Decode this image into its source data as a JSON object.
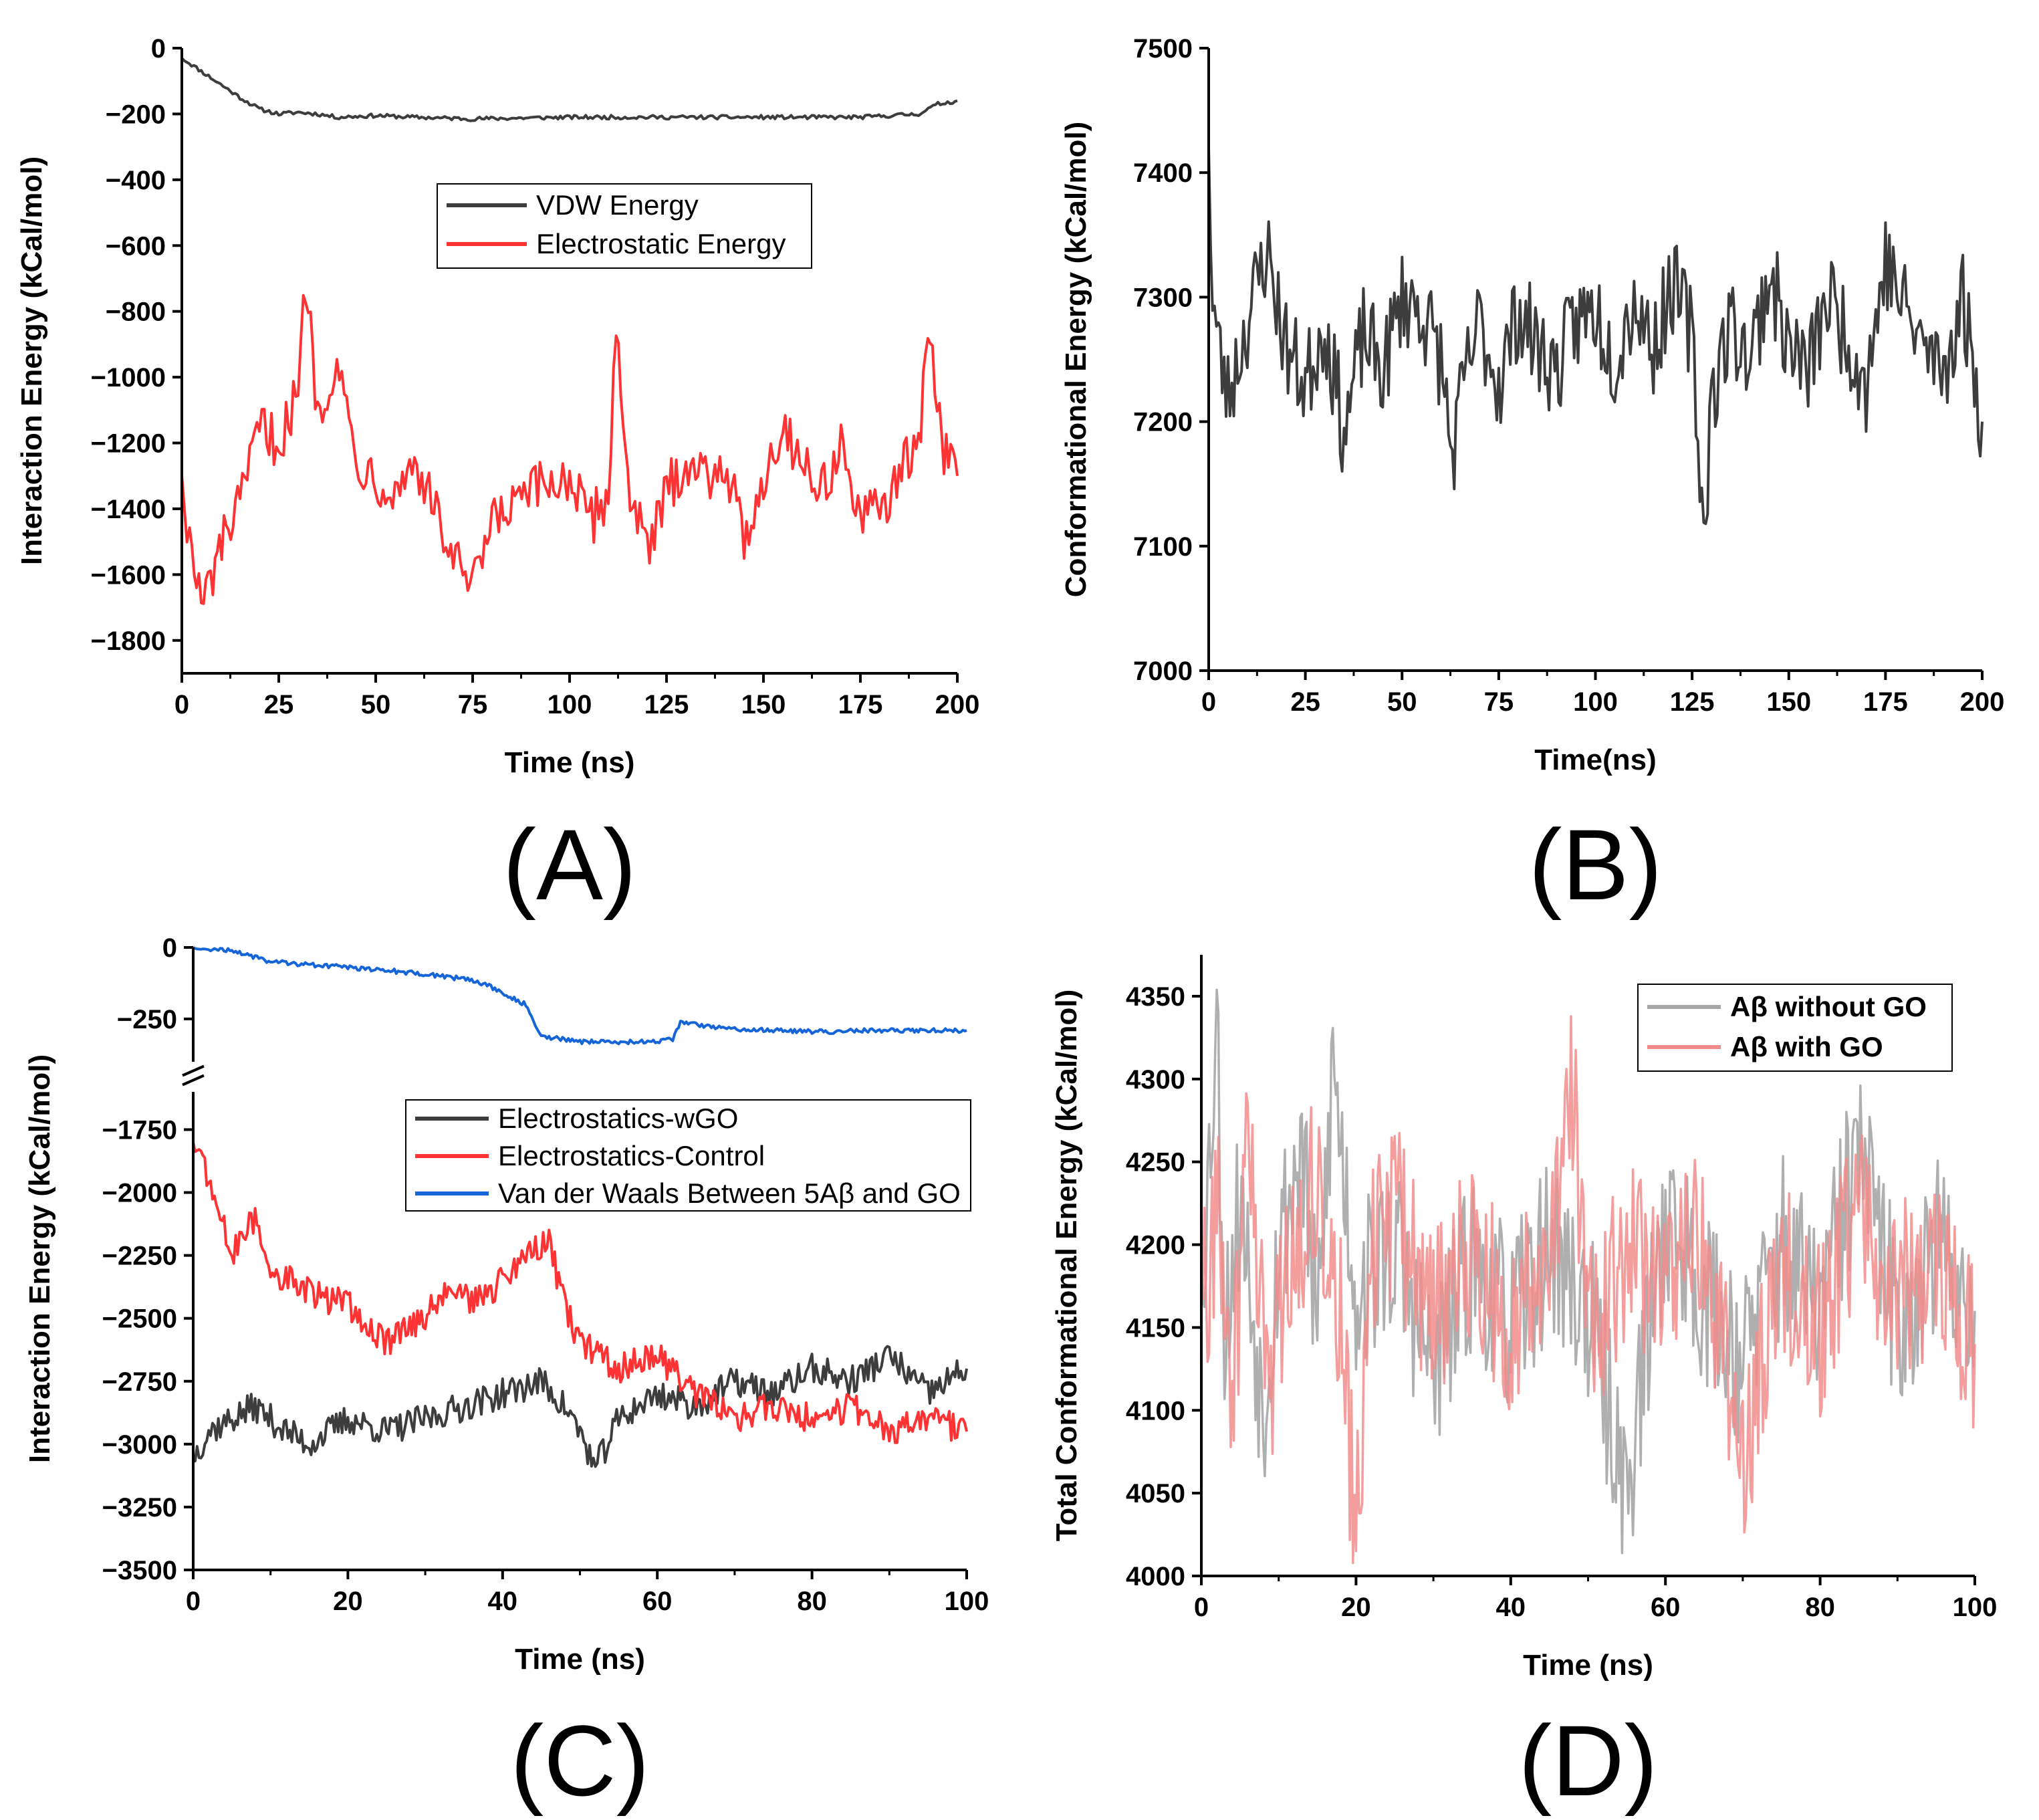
{
  "chart_data": [
    {
      "id": "A",
      "type": "line",
      "panel_label": "(A)",
      "xlabel": "Time (ns)",
      "ylabel": "Interaction Energy (kCal/mol)",
      "xlim": [
        0,
        200
      ],
      "ylim": [
        -1900,
        0
      ],
      "xticks": [
        0,
        25,
        50,
        75,
        100,
        125,
        150,
        175,
        200
      ],
      "yticks": [
        0,
        -200,
        -400,
        -600,
        -800,
        -1000,
        -1200,
        -1400,
        -1600,
        -1800
      ],
      "legend_position": "upper-center",
      "series": [
        {
          "name": "VDW Energy",
          "color": "#3d3d3d",
          "x": [
            0,
            5,
            10,
            15,
            20,
            25,
            30,
            35,
            40,
            50,
            60,
            75,
            100,
            125,
            150,
            175,
            190,
            195,
            200
          ],
          "values": [
            -30,
            -70,
            -110,
            -150,
            -185,
            -200,
            -195,
            -200,
            -210,
            -205,
            -210,
            -215,
            -210,
            -210,
            -210,
            -210,
            -200,
            -170,
            -160
          ]
        },
        {
          "name": "Electrostatic Energy",
          "color": "#ff3333",
          "x": [
            0,
            2,
            5,
            8,
            12,
            15,
            20,
            25,
            30,
            32,
            35,
            40,
            45,
            50,
            55,
            60,
            65,
            70,
            75,
            80,
            90,
            100,
            105,
            110,
            112,
            115,
            120,
            125,
            130,
            135,
            140,
            145,
            150,
            155,
            160,
            165,
            170,
            175,
            180,
            185,
            190,
            193,
            196,
            200
          ],
          "values": [
            -1300,
            -1500,
            -1700,
            -1600,
            -1450,
            -1400,
            -1150,
            -1200,
            -1050,
            -700,
            -1100,
            -950,
            -1250,
            -1300,
            -1350,
            -1250,
            -1400,
            -1550,
            -1650,
            -1450,
            -1350,
            -1300,
            -1450,
            -1350,
            -850,
            -1300,
            -1550,
            -1350,
            -1250,
            -1300,
            -1250,
            -1500,
            -1300,
            -1150,
            -1250,
            -1350,
            -1200,
            -1450,
            -1400,
            -1300,
            -1200,
            -850,
            -1200,
            -1300
          ]
        }
      ]
    },
    {
      "id": "B",
      "type": "line",
      "panel_label": "(B)",
      "xlabel": "Time(ns)",
      "ylabel": "Conformational Energy (kCal/mol)",
      "xlim": [
        0,
        200
      ],
      "ylim": [
        7000,
        7500
      ],
      "xticks": [
        0,
        25,
        50,
        75,
        100,
        125,
        150,
        175,
        200
      ],
      "yticks": [
        7000,
        7100,
        7200,
        7300,
        7400,
        7500
      ],
      "series": [
        {
          "name": "Conformational Energy",
          "color": "#3d3d3d",
          "x": [
            0,
            1,
            3,
            5,
            10,
            15,
            20,
            25,
            30,
            35,
            40,
            45,
            50,
            55,
            60,
            63,
            66,
            70,
            75,
            80,
            85,
            90,
            95,
            100,
            105,
            110,
            115,
            120,
            125,
            128,
            130,
            135,
            140,
            145,
            150,
            155,
            160,
            165,
            170,
            175,
            180,
            185,
            190,
            195,
            200
          ],
          "values": [
            7420,
            7300,
            7250,
            7220,
            7280,
            7340,
            7260,
            7230,
            7280,
            7190,
            7270,
            7240,
            7300,
            7290,
            7250,
            7170,
            7230,
            7280,
            7230,
            7290,
            7260,
            7240,
            7280,
            7290,
            7250,
            7300,
            7260,
            7310,
            7270,
            7110,
            7220,
            7280,
            7250,
            7320,
            7260,
            7240,
            7300,
            7270,
            7230,
            7330,
            7290,
            7260,
            7240,
            7300,
            7200
          ]
        }
      ]
    },
    {
      "id": "C",
      "type": "line",
      "panel_label": "(C)",
      "xlabel": "Time (ns)",
      "ylabel": "Interaction Energy (kCal/mol)",
      "xlim": [
        0,
        100
      ],
      "axis_break": "between -400 and -1600",
      "ylim_upper": [
        -400,
        0
      ],
      "ylim_lower": [
        -3500,
        -1600
      ],
      "xticks": [
        0,
        20,
        40,
        60,
        80,
        100
      ],
      "yticks_upper": [
        0,
        -250
      ],
      "yticks_lower": [
        -1750,
        -2000,
        -2250,
        -2500,
        -2750,
        -3000,
        -3250,
        -3500
      ],
      "legend_position": "upper-right",
      "series": [
        {
          "name": "Electrostatics-wGO",
          "color": "#3d3d3d",
          "x": [
            0,
            2,
            5,
            8,
            12,
            15,
            20,
            25,
            30,
            35,
            40,
            45,
            48,
            50,
            52,
            55,
            60,
            65,
            70,
            75,
            80,
            85,
            90,
            95,
            100
          ],
          "values": [
            -3050,
            -2950,
            -2900,
            -2850,
            -2950,
            -3000,
            -2900,
            -2950,
            -2900,
            -2850,
            -2800,
            -2750,
            -2850,
            -2950,
            -3100,
            -2900,
            -2800,
            -2850,
            -2750,
            -2800,
            -2700,
            -2750,
            -2650,
            -2800,
            -2700
          ]
        },
        {
          "name": "Electrostatics-Control",
          "color": "#ff3333",
          "x": [
            0,
            1,
            3,
            5,
            8,
            10,
            15,
            20,
            25,
            30,
            33,
            36,
            40,
            43,
            46,
            48,
            50,
            55,
            60,
            65,
            70,
            75,
            80,
            85,
            90,
            95,
            100
          ],
          "values": [
            -1800,
            -1850,
            -2050,
            -2250,
            -2100,
            -2300,
            -2400,
            -2450,
            -2600,
            -2500,
            -2350,
            -2450,
            -2350,
            -2250,
            -2200,
            -2450,
            -2600,
            -2700,
            -2650,
            -2800,
            -2900,
            -2850,
            -2900,
            -2850,
            -2950,
            -2900,
            -2950
          ]
        },
        {
          "name": "Van der Waals Between 5Aβ and GO",
          "color": "#1565d8",
          "x": [
            0,
            5,
            10,
            20,
            25,
            30,
            35,
            38,
            40,
            43,
            45,
            50,
            55,
            60,
            62,
            63,
            65,
            70,
            75,
            80,
            90,
            100
          ],
          "values": [
            0,
            -10,
            -50,
            -70,
            -80,
            -95,
            -110,
            -130,
            -160,
            -200,
            -310,
            -330,
            -330,
            -330,
            -320,
            -260,
            -270,
            -285,
            -290,
            -295,
            -290,
            -290
          ]
        }
      ]
    },
    {
      "id": "D",
      "type": "line",
      "panel_label": "(D)",
      "xlabel": "Time (ns)",
      "ylabel": "Total Conformational Energy (kCal/mol)",
      "xlim": [
        0,
        100
      ],
      "ylim": [
        4000,
        4375
      ],
      "xticks": [
        0,
        20,
        40,
        60,
        80,
        100
      ],
      "yticks": [
        4000,
        4050,
        4100,
        4150,
        4200,
        4250,
        4300,
        4350
      ],
      "legend_position": "upper-right",
      "series": [
        {
          "name": "Aβ without GO",
          "color": "#a6a6a6",
          "x": [
            0,
            1,
            2,
            3,
            5,
            8,
            10,
            13,
            15,
            17,
            20,
            25,
            30,
            35,
            40,
            45,
            50,
            55,
            60,
            65,
            70,
            75,
            80,
            85,
            90,
            95,
            100
          ],
          "values": [
            4180,
            4250,
            4340,
            4150,
            4230,
            4100,
            4200,
            4260,
            4140,
            4310,
            4170,
            4200,
            4120,
            4190,
            4150,
            4200,
            4160,
            4050,
            4220,
            4170,
            4130,
            4200,
            4160,
            4260,
            4150,
            4200,
            4160
          ]
        },
        {
          "name": "Aβ with GO",
          "color": "#f28c8c",
          "x": [
            0,
            1,
            2,
            4,
            6,
            9,
            12,
            15,
            18,
            20,
            22,
            25,
            30,
            35,
            40,
            45,
            48,
            50,
            55,
            60,
            65,
            70,
            75,
            80,
            85,
            90,
            95,
            100
          ],
          "values": [
            4200,
            4150,
            4240,
            4100,
            4260,
            4120,
            4200,
            4240,
            4150,
            4020,
            4190,
            4220,
            4160,
            4200,
            4150,
            4190,
            4300,
            4140,
            4200,
            4170,
            4210,
            4060,
            4190,
            4150,
            4220,
            4170,
            4190,
            4140
          ]
        }
      ]
    }
  ]
}
